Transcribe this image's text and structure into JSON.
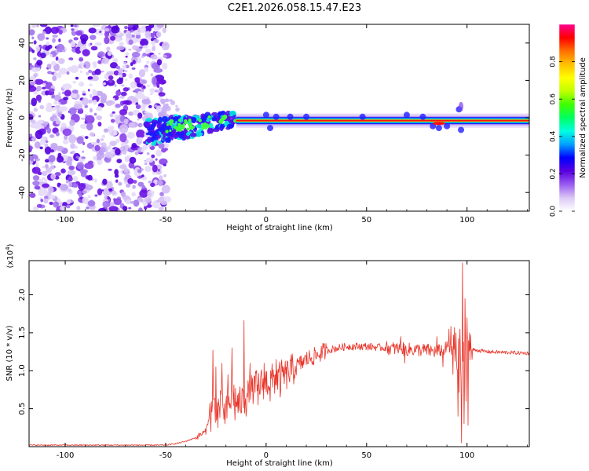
{
  "title": "C2E1.2026.058.15.47.E23",
  "chart_data": [
    {
      "type": "heatmap",
      "name": "spectrogram",
      "xlabel": "Height of straight line (km)",
      "ylabel": "Frequency (Hz)",
      "xlim": [
        -118,
        131
      ],
      "ylim": [
        -50,
        50
      ],
      "xticks": [
        -100,
        -50,
        0,
        50,
        100
      ],
      "yticks": [
        -40,
        -20,
        0,
        20,
        40
      ],
      "colorbar": {
        "label": "Normalized spectral amplitude",
        "range": [
          0,
          1
        ],
        "ticks": [
          0.0,
          0.2,
          0.4,
          0.6,
          0.8
        ],
        "stops": [
          "#ffffff",
          "#dcc8f5",
          "#9a5cf0",
          "#5a00e0",
          "#0000ff",
          "#00a0ff",
          "#00ffe0",
          "#00ff60",
          "#40ff00",
          "#c0ff00",
          "#ffff00",
          "#ffc000",
          "#ff7000",
          "#ff0000",
          "#ff0090"
        ]
      },
      "noise_region_x": [
        -118,
        -49
      ],
      "signal_frequency_hz": -1.5
    },
    {
      "type": "line",
      "name": "snr",
      "xlabel": "Height of straight line (km)",
      "ylabel": "SNR (10 * v/v)",
      "yscale_label": "(x10",
      "yscale_exp": "4",
      "xlim": [
        -118,
        131
      ],
      "ylim": [
        0,
        2.45
      ],
      "xticks": [
        -100,
        -50,
        0,
        50,
        100
      ],
      "yticks": [
        0.5,
        1.0,
        1.5,
        2.0
      ],
      "color": "#e8352a",
      "envelope": {
        "x": [
          -118,
          -50,
          -45,
          -40,
          -35,
          -30,
          -28,
          -26,
          -24,
          -22,
          -20,
          -18,
          -16,
          -14,
          -12,
          -10,
          -8,
          -5,
          0,
          5,
          10,
          15,
          20,
          25,
          30,
          40,
          50,
          60,
          70,
          80,
          85,
          90,
          93,
          95,
          97,
          98,
          99,
          100,
          101,
          105,
          110,
          120,
          131
        ],
        "y": [
          0.02,
          0.02,
          0.04,
          0.07,
          0.12,
          0.2,
          0.45,
          0.55,
          0.5,
          0.55,
          0.45,
          0.6,
          0.7,
          0.55,
          0.6,
          0.65,
          0.7,
          0.8,
          0.85,
          0.9,
          0.95,
          1.05,
          1.15,
          1.2,
          1.27,
          1.32,
          1.32,
          1.3,
          1.28,
          1.27,
          1.25,
          1.3,
          1.3,
          1.2,
          0.9,
          1.1,
          1.0,
          1.1,
          1.28,
          1.27,
          1.25,
          1.24,
          1.23
        ]
      },
      "spikes": [
        {
          "x": -26.5,
          "y": 1.27
        },
        {
          "x": -27.5,
          "y": 0.2
        },
        {
          "x": -25,
          "y": 1.05
        },
        {
          "x": -24,
          "y": 0.25
        },
        {
          "x": -22,
          "y": 1.1
        },
        {
          "x": -20.5,
          "y": 0.3
        },
        {
          "x": -19,
          "y": 0.95
        },
        {
          "x": -17,
          "y": 1.3
        },
        {
          "x": -15.5,
          "y": 0.35
        },
        {
          "x": -11,
          "y": 1.66
        },
        {
          "x": -10,
          "y": 0.4
        },
        {
          "x": -8,
          "y": 1.1
        },
        {
          "x": -4,
          "y": 0.55
        },
        {
          "x": -1,
          "y": 1.1
        },
        {
          "x": 2,
          "y": 0.6
        },
        {
          "x": 5,
          "y": 1.15
        },
        {
          "x": 7,
          "y": 0.65
        },
        {
          "x": 10,
          "y": 1.05
        },
        {
          "x": 67,
          "y": 1.45
        },
        {
          "x": 69,
          "y": 1.1
        },
        {
          "x": 85,
          "y": 1.45
        },
        {
          "x": 88,
          "y": 1.05
        },
        {
          "x": 91,
          "y": 1.55
        },
        {
          "x": 93,
          "y": 0.95
        },
        {
          "x": 94.5,
          "y": 1.5
        },
        {
          "x": 95.5,
          "y": 0.4
        },
        {
          "x": 96.5,
          "y": 1.55
        },
        {
          "x": 97.3,
          "y": 0.05
        },
        {
          "x": 97.8,
          "y": 2.42
        },
        {
          "x": 98.4,
          "y": 0.3
        },
        {
          "x": 99.1,
          "y": 1.95
        },
        {
          "x": 99.6,
          "y": 0.6
        },
        {
          "x": 100.1,
          "y": 1.7
        },
        {
          "x": 100.6,
          "y": 0.28
        },
        {
          "x": 101.2,
          "y": 1.5
        },
        {
          "x": 102.5,
          "y": 1.15
        }
      ]
    }
  ]
}
